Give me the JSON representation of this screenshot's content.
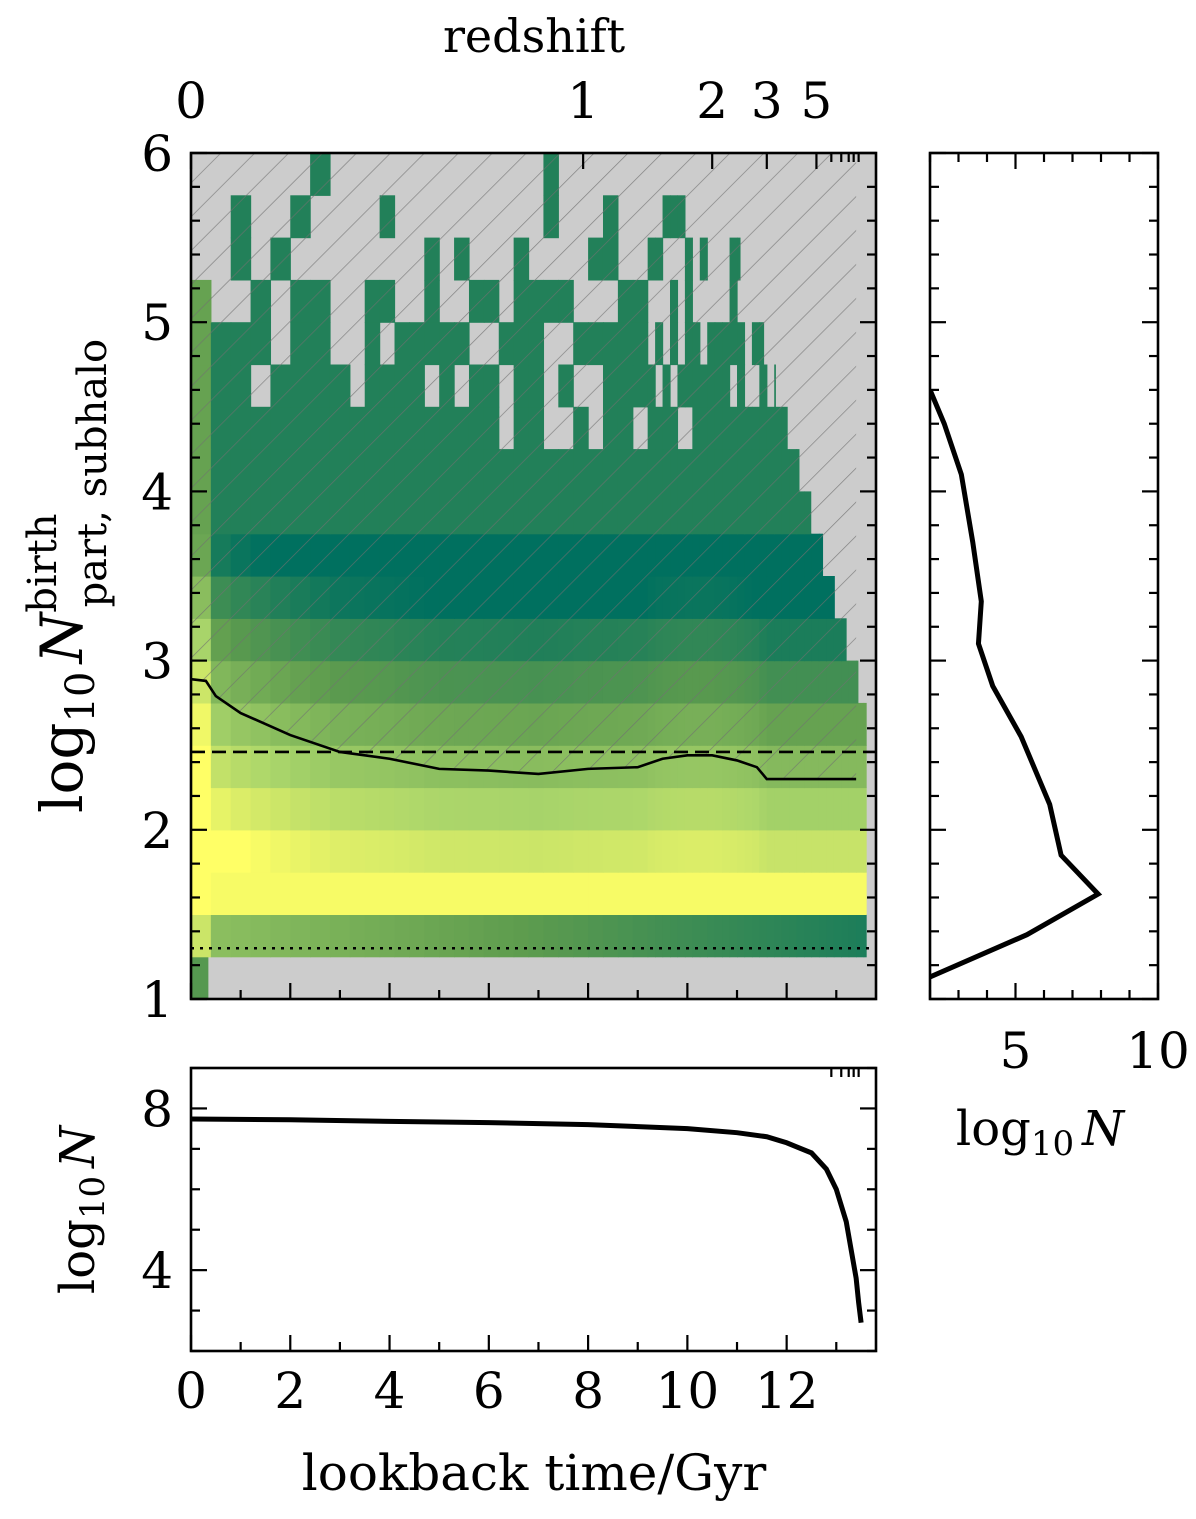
{
  "chart_data": [
    {
      "id": "main-heatmap",
      "type": "heatmap",
      "ylabel_base": "log",
      "ylabel_sub": "10",
      "ylabel_var": "N",
      "ylabel_sup": "birth",
      "ylabel_subscript": "part, subhalo",
      "top_axis_title": "redshift",
      "top_ticks": [
        {
          "label": "0",
          "t": 0.0
        },
        {
          "label": "1",
          "t": 7.9
        },
        {
          "label": "2",
          "t": 10.5
        },
        {
          "label": "3",
          "t": 11.6
        },
        {
          "label": "5",
          "t": 12.6
        }
      ],
      "xlim": [
        0,
        13.8
      ],
      "ylim": [
        1,
        6
      ],
      "yticks": [
        "1",
        "2",
        "3",
        "4",
        "5",
        "6"
      ],
      "colormap": [
        "#00705f",
        "#5e9c4e",
        "#a8d46a",
        "#ffff66"
      ],
      "hatched_region_above": "median",
      "median_line": {
        "t": [
          0,
          0.3,
          0.5,
          1.0,
          2.0,
          3.0,
          4.0,
          5.0,
          6.0,
          7.0,
          8.0,
          9.0,
          9.5,
          10.0,
          10.5,
          11.0,
          11.4,
          11.6,
          12.5,
          13.4
        ],
        "logN": [
          2.89,
          2.88,
          2.79,
          2.69,
          2.56,
          2.46,
          2.42,
          2.36,
          2.35,
          2.33,
          2.36,
          2.37,
          2.42,
          2.44,
          2.44,
          2.41,
          2.37,
          2.3,
          2.3,
          2.3
        ]
      },
      "dashed_threshold": 2.46,
      "dotted_threshold": 1.3
    },
    {
      "id": "right-histogram",
      "type": "line",
      "xlabel_base": "log",
      "xlabel_sub": "10",
      "xlabel_var": "N",
      "xticks": [
        "5",
        "10"
      ],
      "xlim": [
        2,
        10
      ],
      "ylim": [
        1,
        6
      ],
      "x": [
        2.0,
        2.5,
        3.1,
        3.5,
        3.8,
        3.7,
        4.2,
        5.2,
        6.2,
        6.6,
        7.9,
        5.4,
        2.0
      ],
      "y": [
        4.6,
        4.4,
        4.1,
        3.7,
        3.35,
        3.1,
        2.85,
        2.55,
        2.15,
        1.85,
        1.62,
        1.38,
        1.13
      ]
    },
    {
      "id": "bottom-count",
      "type": "line",
      "ylabel_base": "log",
      "ylabel_sub": "10",
      "ylabel_var": "N",
      "xlabel": "lookback time/Gyr",
      "xticks": [
        "0",
        "2",
        "4",
        "6",
        "8",
        "10",
        "12"
      ],
      "yticks": [
        "4",
        "8"
      ],
      "xlim": [
        0,
        13.8
      ],
      "ylim": [
        2,
        9
      ],
      "t": [
        0,
        2,
        4,
        6,
        8,
        10,
        11,
        11.6,
        12.0,
        12.5,
        12.8,
        13.0,
        13.2,
        13.3,
        13.4,
        13.45,
        13.5
      ],
      "logN": [
        7.74,
        7.72,
        7.68,
        7.65,
        7.6,
        7.5,
        7.4,
        7.3,
        7.15,
        6.9,
        6.5,
        6.0,
        5.2,
        4.5,
        3.8,
        3.2,
        2.7
      ]
    }
  ]
}
